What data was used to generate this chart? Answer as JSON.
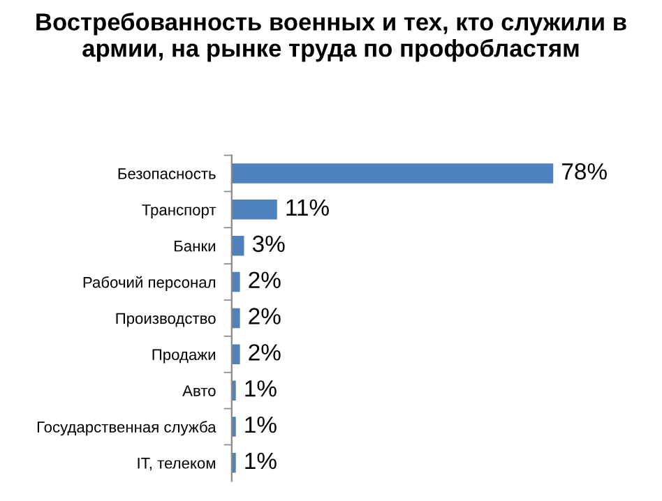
{
  "chart_data": {
    "type": "bar",
    "orientation": "horizontal",
    "title": "Востребованность военных и тех, кто служили в армии, на рынке труда по профобластям",
    "categories": [
      "Безопасность",
      "Транспорт",
      "Банки",
      "Рабочий персонал",
      "Производство",
      "Продажи",
      "Авто",
      "Государственная служба",
      "IT, телеком"
    ],
    "values": [
      78,
      11,
      3,
      2,
      2,
      2,
      1,
      1,
      1
    ],
    "value_labels": [
      "78%",
      "11%",
      "3%",
      "2%",
      "2%",
      "2%",
      "1%",
      "1%",
      "1%"
    ],
    "color": "#4f81bd",
    "grid": false,
    "legend": false
  }
}
